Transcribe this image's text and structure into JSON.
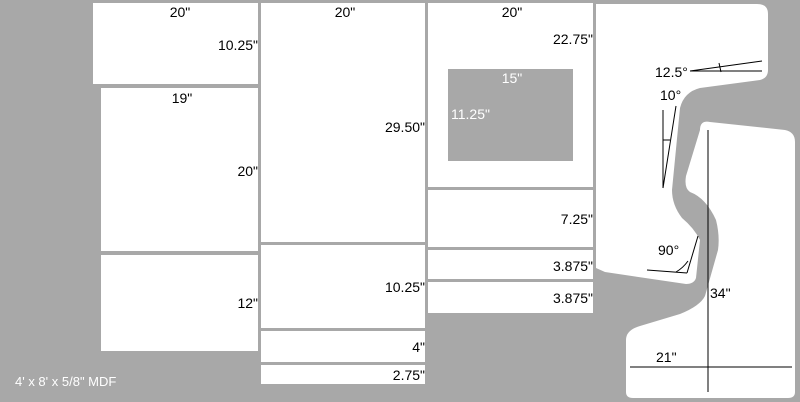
{
  "material": "4' x 8' x 5/8\" MDF",
  "colors": {
    "sheet": "#a8a8a8",
    "panel": "#ffffff",
    "cutout": "#a8a8a8",
    "line": "#000000"
  },
  "panels": {
    "col1_top": {
      "width": "20\"",
      "height": "10.25\""
    },
    "col1_mid": {
      "width": "19\"",
      "height": "20\""
    },
    "col1_bot": {
      "height": "12\""
    },
    "col2_top": {
      "width": "20\"",
      "height": "29.50\""
    },
    "col2_mid": {
      "height": "10.25\""
    },
    "col2_strip1": {
      "height": "4\""
    },
    "col2_strip2": {
      "height": "2.75\""
    },
    "col3_top": {
      "width": "20\"",
      "height": "22.75\""
    },
    "col3_cutout": {
      "width": "15\"",
      "height": "11.25\""
    },
    "col3_mid": {
      "height": "7.25\""
    },
    "col3_strip1": {
      "height": "3.875\""
    },
    "col3_strip2": {
      "height": "3.875\""
    }
  },
  "side_piece": {
    "angle_top": "12.5°",
    "angle_mid": "10°",
    "angle_bottom": "90°",
    "height": "34\"",
    "depth": "21\""
  }
}
